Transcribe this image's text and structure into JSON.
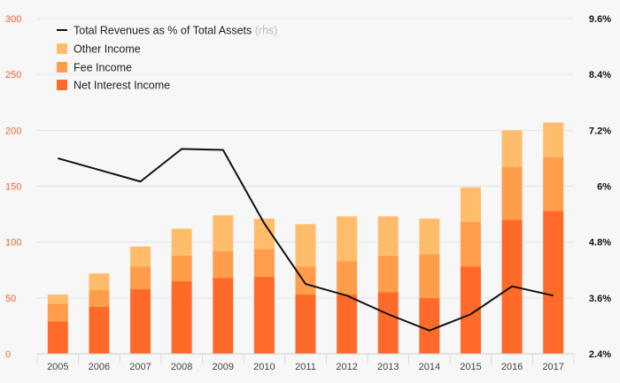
{
  "chart_data": {
    "type": "bar",
    "stacked": true,
    "categories": [
      "2005",
      "2006",
      "2007",
      "2008",
      "2009",
      "2010",
      "2011",
      "2012",
      "2013",
      "2014",
      "2015",
      "2016",
      "2017"
    ],
    "series": [
      {
        "name": "Net Interest Income",
        "color": "#ff6a2a",
        "values": [
          29,
          42,
          58,
          65,
          68,
          69,
          53,
          53,
          55,
          50,
          78,
          120,
          128
        ]
      },
      {
        "name": "Fee Income",
        "color": "#ff9d4a",
        "values": [
          16,
          15,
          20,
          23,
          24,
          25,
          25,
          30,
          33,
          39,
          40,
          47,
          48
        ]
      },
      {
        "name": "Other Income",
        "color": "#ffbd6b",
        "values": [
          8,
          15,
          18,
          24,
          32,
          27,
          38,
          40,
          35,
          32,
          31,
          33,
          31
        ]
      }
    ],
    "line_series": {
      "name": "Total Revenues as % of Total Assets",
      "name_note": "(rhs)",
      "axis": "right",
      "color": "#111111",
      "values": [
        6.6,
        6.35,
        6.1,
        6.8,
        6.78,
        5.2,
        3.9,
        3.65,
        3.25,
        2.9,
        3.25,
        3.85,
        3.65
      ]
    },
    "y_left": {
      "min": 0,
      "max": 300,
      "ticks": [
        "0",
        "50",
        "100",
        "150",
        "200",
        "250",
        "300"
      ]
    },
    "y_right": {
      "min": 2.4,
      "max": 9.6,
      "ticks": [
        "2.4%",
        "3.6%",
        "4.8%",
        "6%",
        "7.2%",
        "8.4%",
        "9.6%"
      ]
    },
    "legend": {
      "placement": "top-left",
      "entries": [
        {
          "label": "Total Revenues as % of Total Assets",
          "note": "(rhs)",
          "kind": "line",
          "color": "#111111"
        },
        {
          "label": "Other Income",
          "kind": "box",
          "color": "#ffbd6b"
        },
        {
          "label": "Fee Income",
          "kind": "box",
          "color": "#ff9d4a"
        },
        {
          "label": "Net Interest Income",
          "kind": "box",
          "color": "#ff6a2a"
        }
      ]
    },
    "grid": true
  }
}
